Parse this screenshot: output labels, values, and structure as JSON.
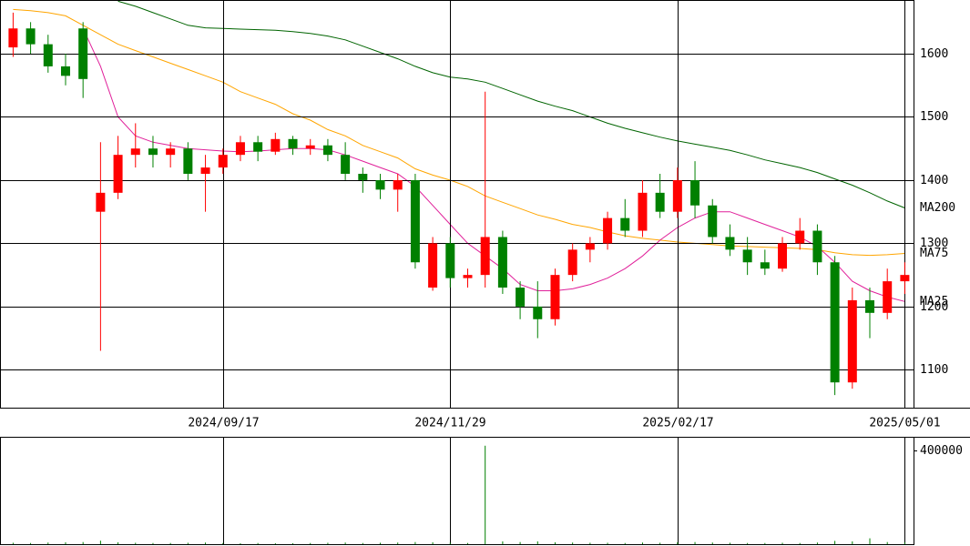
{
  "chart_data": {
    "type": "candlestick",
    "x": [
      2,
      6,
      10,
      14,
      18,
      22,
      26,
      30,
      34,
      38,
      42,
      46,
      50,
      54,
      58,
      62,
      66,
      70,
      74,
      78,
      82,
      86,
      90,
      94,
      98,
      102,
      106,
      110,
      114,
      118,
      122,
      126,
      130,
      134,
      138,
      142,
      146,
      150,
      154,
      158,
      162,
      166,
      170,
      174,
      178,
      182,
      186,
      190,
      194,
      198,
      202,
      206
    ],
    "open": [
      1610,
      1640,
      1615,
      1580,
      1640,
      1350,
      1380,
      1440,
      1450,
      1440,
      1450,
      1410,
      1420,
      1440,
      1460,
      1445,
      1465,
      1450,
      1455,
      1440,
      1410,
      1400,
      1385,
      1400,
      1230,
      1300,
      1245,
      1250,
      1310,
      1230,
      1200,
      1180,
      1250,
      1290,
      1300,
      1340,
      1320,
      1380,
      1350,
      1400,
      1360,
      1310,
      1290,
      1270,
      1260,
      1300,
      1320,
      1270,
      1080,
      1210,
      1190,
      1240
    ],
    "high": [
      1665,
      1650,
      1630,
      1600,
      1650,
      1460,
      1470,
      1490,
      1470,
      1460,
      1460,
      1440,
      1450,
      1470,
      1470,
      1475,
      1470,
      1465,
      1465,
      1460,
      1420,
      1410,
      1410,
      1410,
      1310,
      1310,
      1260,
      1540,
      1320,
      1240,
      1240,
      1260,
      1300,
      1310,
      1350,
      1370,
      1400,
      1410,
      1420,
      1430,
      1370,
      1330,
      1310,
      1290,
      1310,
      1340,
      1330,
      1280,
      1230,
      1230,
      1260,
      1270
    ],
    "low": [
      1595,
      1600,
      1570,
      1550,
      1530,
      1130,
      1370,
      1420,
      1420,
      1420,
      1400,
      1350,
      1410,
      1430,
      1430,
      1440,
      1440,
      1440,
      1430,
      1400,
      1380,
      1370,
      1350,
      1260,
      1225,
      1230,
      1230,
      1230,
      1220,
      1180,
      1150,
      1170,
      1240,
      1270,
      1290,
      1310,
      1310,
      1340,
      1340,
      1340,
      1300,
      1280,
      1250,
      1250,
      1255,
      1290,
      1250,
      1060,
      1070,
      1150,
      1180,
      1220
    ],
    "close": [
      1640,
      1615,
      1580,
      1565,
      1560,
      1380,
      1440,
      1450,
      1440,
      1450,
      1410,
      1420,
      1440,
      1460,
      1445,
      1465,
      1450,
      1455,
      1440,
      1410,
      1400,
      1385,
      1400,
      1270,
      1300,
      1245,
      1250,
      1310,
      1230,
      1200,
      1180,
      1250,
      1290,
      1300,
      1340,
      1320,
      1380,
      1350,
      1400,
      1360,
      1310,
      1290,
      1270,
      1260,
      1300,
      1320,
      1270,
      1080,
      1210,
      1190,
      1240,
      1250
    ],
    "series": [
      {
        "name": "MA200",
        "color": "#006400",
        "values": [
          null,
          null,
          null,
          null,
          null,
          null,
          1683,
          1675,
          1665,
          1655,
          1645,
          1641,
          1640,
          1639,
          1638,
          1637,
          1635,
          1632,
          1628,
          1622,
          1612,
          1602,
          1592,
          1580,
          1570,
          1563,
          1560,
          1555,
          1545,
          1535,
          1525,
          1517,
          1510,
          1500,
          1490,
          1482,
          1475,
          1468,
          1462,
          1457,
          1452,
          1447,
          1440,
          1432,
          1426,
          1420,
          1412,
          1402,
          1392,
          1380,
          1367,
          1356
        ]
      },
      {
        "name": "MA75",
        "color": "#ffa500",
        "values": [
          1670,
          1668,
          1665,
          1660,
          1645,
          1630,
          1615,
          1605,
          1595,
          1585,
          1575,
          1565,
          1555,
          1540,
          1530,
          1520,
          1505,
          1495,
          1480,
          1470,
          1455,
          1445,
          1435,
          1418,
          1408,
          1400,
          1390,
          1375,
          1365,
          1355,
          1345,
          1338,
          1330,
          1325,
          1318,
          1312,
          1308,
          1305,
          1302,
          1300,
          1298,
          1296,
          1295,
          1294,
          1293,
          1292,
          1290,
          1285,
          1282,
          1281,
          1282,
          1284
        ]
      },
      {
        "name": "MA25",
        "color": "#e0209a",
        "values": [
          null,
          null,
          null,
          null,
          1640,
          1580,
          1500,
          1470,
          1460,
          1455,
          1450,
          1448,
          1446,
          1445,
          1446,
          1448,
          1450,
          1450,
          1448,
          1440,
          1430,
          1420,
          1410,
          1390,
          1360,
          1330,
          1300,
          1280,
          1260,
          1235,
          1225,
          1225,
          1228,
          1235,
          1245,
          1260,
          1280,
          1305,
          1325,
          1340,
          1350,
          1350,
          1340,
          1330,
          1320,
          1310,
          1295,
          1270,
          1240,
          1225,
          1215,
          1208
        ]
      }
    ],
    "up_color": "#ff0000",
    "down_color": "#008000",
    "xlim": [
      -1,
      208
    ],
    "xticks": [
      {
        "value": 50,
        "label": "2024/09/17"
      },
      {
        "value": 102,
        "label": "2024/11/29"
      },
      {
        "value": 154,
        "label": "2025/02/17"
      },
      {
        "value": 206,
        "label": "2025/05/01"
      }
    ],
    "ylim": [
      1040,
      1685
    ],
    "yticks": [
      1100,
      1200,
      1300,
      1400,
      1500,
      1600
    ],
    "grid": true,
    "volume": {
      "values": [
        6000,
        5000,
        7000,
        8000,
        9000,
        15000,
        8000,
        6000,
        5000,
        5000,
        6000,
        7000,
        5000,
        4000,
        5000,
        4000,
        4000,
        5000,
        6000,
        7000,
        5000,
        6000,
        7000,
        9000,
        8000,
        6000,
        5000,
        420000,
        12000,
        9000,
        12000,
        8000,
        7000,
        6000,
        6000,
        5000,
        7000,
        6000,
        8000,
        9000,
        7000,
        6000,
        5000,
        5000,
        6000,
        5000,
        7000,
        14000,
        12000,
        25000,
        9000,
        7000
      ],
      "color": "#008000",
      "ylim": [
        0,
        458000
      ],
      "yticks": [
        400000
      ]
    }
  }
}
